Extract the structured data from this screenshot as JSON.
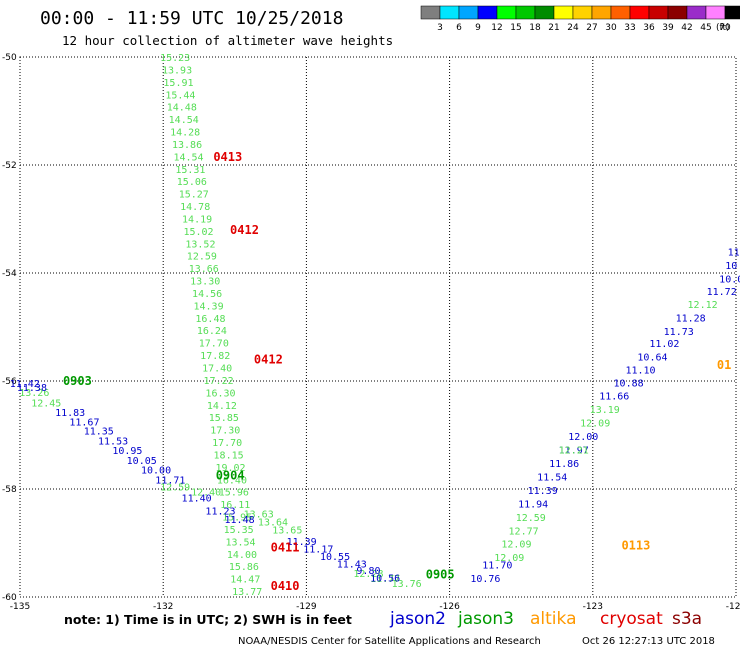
{
  "header": {
    "title": "00:00 - 11:59 UTC 10/25/2018",
    "subtitle": "12 hour collection of altimeter wave heights"
  },
  "legend": {
    "colors": [
      "#7f7f7f",
      "#00e5ff",
      "#00a6ff",
      "#0000ff",
      "#00ff00",
      "#00c800",
      "#008c00",
      "#ffff00",
      "#ffd200",
      "#ffa500",
      "#ff6000",
      "#ff0000",
      "#c80000",
      "#8b0000",
      "#9a2cc9",
      "#ff80ff",
      "#000000"
    ],
    "labels": [
      "3",
      "6",
      "9",
      "12",
      "15",
      "18",
      "21",
      "24",
      "27",
      "30",
      "33",
      "36",
      "39",
      "42",
      "45",
      "70"
    ],
    "unit": "(ft)"
  },
  "note": "note: 1) Time is in UTC; 2) SWH is in feet",
  "satellites": [
    {
      "name": "jason2",
      "color": "#0000cc"
    },
    {
      "name": "jason3",
      "color": "#009900"
    },
    {
      "name": "altika",
      "color": "#ff9900"
    },
    {
      "name": "cryosat",
      "color": "#e00000"
    },
    {
      "name": "s3a",
      "color": "#8b0000"
    }
  ],
  "footer": {
    "credit": "NOAA/NESDIS Center for Satellite Applications and Research",
    "timestamp": "Oct 26 12:27:13 UTC 2018"
  },
  "chart_data": {
    "type": "scatter",
    "title": "00:00 - 11:59 UTC 10/25/2018",
    "subtitle": "12 hour collection of altimeter wave heights",
    "xlim": [
      -135,
      -120
    ],
    "ylim": [
      -60,
      -50
    ],
    "x_ticks": [
      "-135",
      "-132",
      "-129",
      "-126",
      "-123",
      "-120"
    ],
    "y_ticks": [
      "-50",
      "-52",
      "-54",
      "-56",
      "-58",
      "-60"
    ],
    "grid": true,
    "pass_labels": [
      {
        "text": "0413",
        "x": -130.95,
        "y": -51.85,
        "color": "#e00000"
      },
      {
        "text": "0412",
        "x": -130.6,
        "y": -53.2,
        "color": "#e00000"
      },
      {
        "text": "0412",
        "x": -130.1,
        "y": -55.6,
        "color": "#e00000"
      },
      {
        "text": "0411",
        "x": -129.75,
        "y": -59.08,
        "color": "#e00000"
      },
      {
        "text": "0410",
        "x": -129.75,
        "y": -59.8,
        "color": "#e00000"
      },
      {
        "text": "0903",
        "x": -134.1,
        "y": -56.0,
        "color": "#009900"
      },
      {
        "text": "0904",
        "x": -130.9,
        "y": -57.75,
        "color": "#009900"
      },
      {
        "text": "0905",
        "x": -126.5,
        "y": -59.58,
        "color": "#009900"
      },
      {
        "text": "0113",
        "x": -122.4,
        "y": -59.05,
        "color": "#ff9900"
      },
      {
        "text": "01",
        "x": -120.4,
        "y": -55.7,
        "color": "#ff9900"
      }
    ],
    "series": [
      {
        "name": "jason3",
        "color": "#55dd55",
        "points": [
          {
            "x": -131.75,
            "y": -50.0,
            "v": "15.23"
          },
          {
            "x": -131.71,
            "y": -50.23,
            "v": "13.93"
          },
          {
            "x": -131.68,
            "y": -50.46,
            "v": "15.91"
          },
          {
            "x": -131.64,
            "y": -50.69,
            "v": "15.44"
          },
          {
            "x": -131.61,
            "y": -50.92,
            "v": "14.48"
          },
          {
            "x": -131.57,
            "y": -51.15,
            "v": "14.54"
          },
          {
            "x": -131.54,
            "y": -51.38,
            "v": "14.28"
          },
          {
            "x": -131.5,
            "y": -51.61,
            "v": "13.86"
          },
          {
            "x": -131.47,
            "y": -51.84,
            "v": "14.54"
          },
          {
            "x": -131.43,
            "y": -52.07,
            "v": "15.31"
          },
          {
            "x": -131.4,
            "y": -52.3,
            "v": "15.06"
          },
          {
            "x": -131.36,
            "y": -52.53,
            "v": "15.27"
          },
          {
            "x": -131.33,
            "y": -52.76,
            "v": "14.78"
          },
          {
            "x": -131.29,
            "y": -52.99,
            "v": "14.19"
          },
          {
            "x": -131.26,
            "y": -53.22,
            "v": "15.02"
          },
          {
            "x": -131.22,
            "y": -53.45,
            "v": "13.52"
          },
          {
            "x": -131.19,
            "y": -53.68,
            "v": "12.59"
          },
          {
            "x": -131.15,
            "y": -53.91,
            "v": "13.66"
          },
          {
            "x": -131.12,
            "y": -54.14,
            "v": "13.30"
          },
          {
            "x": -131.08,
            "y": -54.37,
            "v": "14.56"
          },
          {
            "x": -131.05,
            "y": -54.6,
            "v": "14.39"
          },
          {
            "x": -131.01,
            "y": -54.83,
            "v": "16.48"
          },
          {
            "x": -130.98,
            "y": -55.06,
            "v": "16.24"
          },
          {
            "x": -130.94,
            "y": -55.29,
            "v": "17.70"
          },
          {
            "x": -130.91,
            "y": -55.52,
            "v": "17.82"
          },
          {
            "x": -130.87,
            "y": -55.75,
            "v": "17.40"
          },
          {
            "x": -130.84,
            "y": -55.98,
            "v": "17.22"
          },
          {
            "x": -130.8,
            "y": -56.21,
            "v": "16.30"
          },
          {
            "x": -130.77,
            "y": -56.44,
            "v": "14.12"
          },
          {
            "x": -130.73,
            "y": -56.67,
            "v": "15.85"
          },
          {
            "x": -130.7,
            "y": -56.9,
            "v": "17.30"
          },
          {
            "x": -130.66,
            "y": -57.13,
            "v": "17.70"
          },
          {
            "x": -130.63,
            "y": -57.36,
            "v": "18.15"
          },
          {
            "x": -130.59,
            "y": -57.59,
            "v": "19.02"
          },
          {
            "x": -130.56,
            "y": -57.82,
            "v": "16.40"
          },
          {
            "x": -130.52,
            "y": -58.05,
            "v": "15.96"
          },
          {
            "x": -130.49,
            "y": -58.28,
            "v": "16.11"
          },
          {
            "x": -130.45,
            "y": -58.51,
            "v": "15.95"
          },
          {
            "x": -130.42,
            "y": -58.74,
            "v": "15.35"
          },
          {
            "x": -130.38,
            "y": -58.97,
            "v": "13.54"
          },
          {
            "x": -130.35,
            "y": -59.2,
            "v": "14.00"
          },
          {
            "x": -130.31,
            "y": -59.43,
            "v": "15.86"
          },
          {
            "x": -130.28,
            "y": -59.66,
            "v": "14.47"
          },
          {
            "x": -130.24,
            "y": -59.89,
            "v": "13.77"
          },
          {
            "x": -134.7,
            "y": -56.2,
            "v": "13.26"
          },
          {
            "x": -134.45,
            "y": -56.4,
            "v": "12.45"
          },
          {
            "x": -131.75,
            "y": -57.95,
            "v": "12.59"
          },
          {
            "x": -131.1,
            "y": -58.05,
            "v": "12.40"
          },
          {
            "x": -130.0,
            "y": -58.45,
            "v": "13.63"
          },
          {
            "x": -129.7,
            "y": -58.6,
            "v": "13.64"
          },
          {
            "x": -129.4,
            "y": -58.75,
            "v": "13.65"
          },
          {
            "x": -127.7,
            "y": -59.56,
            "v": "12.28"
          },
          {
            "x": -127.35,
            "y": -59.65,
            "v": "11.77"
          },
          {
            "x": -126.9,
            "y": -59.74,
            "v": "13.76"
          }
        ]
      },
      {
        "name": "jason2",
        "color": "#0000cc",
        "points": [
          {
            "x": -134.9,
            "y": -56.04,
            "v": "11.42"
          },
          {
            "x": -134.75,
            "y": -56.11,
            "v": "11.38"
          },
          {
            "x": -133.95,
            "y": -56.57,
            "v": "11.83"
          },
          {
            "x": -133.65,
            "y": -56.75,
            "v": "11.67"
          },
          {
            "x": -133.35,
            "y": -56.92,
            "v": "11.35"
          },
          {
            "x": -133.05,
            "y": -57.1,
            "v": "11.53"
          },
          {
            "x": -132.75,
            "y": -57.28,
            "v": "10.95"
          },
          {
            "x": -132.45,
            "y": -57.46,
            "v": "10.05"
          },
          {
            "x": -132.15,
            "y": -57.64,
            "v": "10.00"
          },
          {
            "x": -131.85,
            "y": -57.82,
            "v": "11.71"
          },
          {
            "x": -131.3,
            "y": -58.16,
            "v": "11.40"
          },
          {
            "x": -130.8,
            "y": -58.4,
            "v": "11.23"
          },
          {
            "x": -130.4,
            "y": -58.56,
            "v": "11.48"
          },
          {
            "x": -129.1,
            "y": -58.96,
            "v": "11.39"
          },
          {
            "x": -128.75,
            "y": -59.1,
            "v": "11.17"
          },
          {
            "x": -128.4,
            "y": -59.24,
            "v": "10.55"
          },
          {
            "x": -128.05,
            "y": -59.38,
            "v": "11.43"
          },
          {
            "x": -127.7,
            "y": -59.5,
            "v": "9.80"
          },
          {
            "x": -127.35,
            "y": -59.64,
            "v": "10.56"
          },
          {
            "x": -120.05,
            "y": -53.6,
            "v": "11"
          },
          {
            "x": -120.1,
            "y": -53.85,
            "v": "10"
          },
          {
            "x": -120.1,
            "y": -54.1,
            "v": "10.0"
          },
          {
            "x": -120.3,
            "y": -54.33,
            "v": "11.72"
          },
          {
            "x": -120.95,
            "y": -54.82,
            "v": "11.28"
          },
          {
            "x": -121.2,
            "y": -55.07,
            "v": "11.73"
          },
          {
            "x": -121.5,
            "y": -55.3,
            "v": "11.02"
          },
          {
            "x": -121.75,
            "y": -55.55,
            "v": "10.64"
          },
          {
            "x": -122.0,
            "y": -55.79,
            "v": "11.10"
          },
          {
            "x": -122.25,
            "y": -56.03,
            "v": "10.88"
          },
          {
            "x": -122.55,
            "y": -56.27,
            "v": "11.66"
          },
          {
            "x": -123.2,
            "y": -57.02,
            "v": "12.00"
          },
          {
            "x": -123.4,
            "y": -57.27,
            "v": "11.97"
          },
          {
            "x": -123.6,
            "y": -57.52,
            "v": "11.86"
          },
          {
            "x": -123.85,
            "y": -57.77,
            "v": "11.54"
          },
          {
            "x": -124.05,
            "y": -58.02,
            "v": "11.39"
          },
          {
            "x": -124.25,
            "y": -58.27,
            "v": "11.94"
          },
          {
            "x": -125.0,
            "y": -59.4,
            "v": "11.70"
          },
          {
            "x": -125.25,
            "y": -59.65,
            "v": "10.76"
          }
        ]
      },
      {
        "name": "jason3-east",
        "color": "#55dd55",
        "points": [
          {
            "x": -120.7,
            "y": -54.57,
            "v": "12.12"
          },
          {
            "x": -122.75,
            "y": -56.52,
            "v": "13.19"
          },
          {
            "x": -122.95,
            "y": -56.77,
            "v": "12.09"
          },
          {
            "x": -123.4,
            "y": -57.27,
            "v": "12.21"
          },
          {
            "x": -124.3,
            "y": -58.52,
            "v": "12.59"
          },
          {
            "x": -124.45,
            "y": -58.77,
            "v": "12.77"
          },
          {
            "x": -124.6,
            "y": -59.01,
            "v": "12.09"
          },
          {
            "x": -124.75,
            "y": -59.26,
            "v": "12.09"
          }
        ]
      }
    ]
  }
}
